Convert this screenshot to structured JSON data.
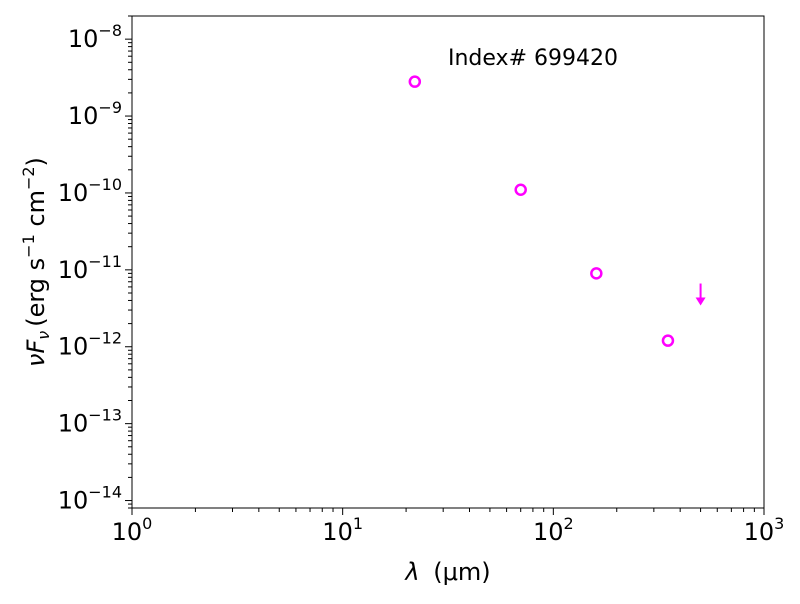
{
  "chart_data": {
    "type": "scatter",
    "title": "",
    "annotation": "Index# 699420",
    "xlabel": {
      "symbol": "λ",
      "unit": "(μm)"
    },
    "ylabel": {
      "symbol_main": "ν",
      "symbol_F": "F",
      "symbol_sub": "ν",
      "unit_open": "(erg s",
      "unit_exp1": "−1",
      "unit_mid": " cm",
      "unit_exp2": "−2",
      "unit_close": ")"
    },
    "x_scale": "log",
    "y_scale": "log",
    "xlim": [
      1,
      1000
    ],
    "ylim": [
      8e-15,
      2e-08
    ],
    "x_ticks": [
      {
        "value": 1,
        "base": "10",
        "exp": "0"
      },
      {
        "value": 10,
        "base": "10",
        "exp": "1"
      },
      {
        "value": 100,
        "base": "10",
        "exp": "2"
      },
      {
        "value": 1000,
        "base": "10",
        "exp": "3"
      }
    ],
    "y_ticks": [
      {
        "value": 1e-14,
        "base": "10",
        "exp": "−14"
      },
      {
        "value": 1e-13,
        "base": "10",
        "exp": "−13"
      },
      {
        "value": 1e-12,
        "base": "10",
        "exp": "−12"
      },
      {
        "value": 1e-11,
        "base": "10",
        "exp": "−11"
      },
      {
        "value": 1e-10,
        "base": "10",
        "exp": "−10"
      },
      {
        "value": 1e-09,
        "base": "10",
        "exp": "−9"
      },
      {
        "value": 1e-08,
        "base": "10",
        "exp": "−8"
      }
    ],
    "grid": false,
    "series": [
      {
        "marker": "open-circle",
        "color": "#ff00ff",
        "points": [
          {
            "x": 22,
            "y": 2.8e-09
          },
          {
            "x": 70,
            "y": 1.1e-10
          },
          {
            "x": 160,
            "y": 9e-12
          },
          {
            "x": 350,
            "y": 1.2e-12
          }
        ]
      },
      {
        "marker": "upper-limit-arrow",
        "color": "#ff00ff",
        "points": [
          {
            "x": 500,
            "y": 4.5e-12
          }
        ]
      }
    ]
  }
}
